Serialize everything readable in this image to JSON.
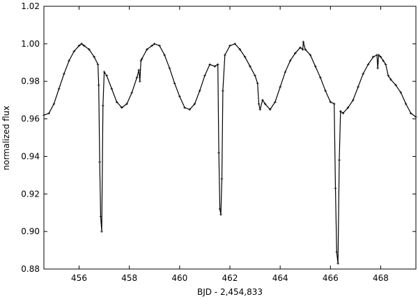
{
  "chart_data": {
    "type": "line",
    "title": "",
    "xlabel": "BJD - 2,454,833",
    "ylabel": "normalized flux",
    "xlim": [
      454.6,
      469.4
    ],
    "ylim": [
      0.88,
      1.02
    ],
    "x_ticks": [
      456,
      458,
      460,
      462,
      464,
      466,
      468
    ],
    "x_tick_labels": [
      "456",
      "458",
      "460",
      "462",
      "464",
      "466",
      "468"
    ],
    "y_ticks": [
      0.88,
      0.9,
      0.92,
      0.94,
      0.96,
      0.98,
      1.0,
      1.02
    ],
    "y_tick_labels": [
      "0.88",
      "0.90",
      "0.92",
      "0.94",
      "0.96",
      "0.98",
      "1.00",
      "1.02"
    ],
    "grid": false,
    "legend": "none",
    "series": [
      {
        "color": "#000000",
        "marker": "plus",
        "x": [
          454.6,
          454.8,
          455.0,
          455.2,
          455.4,
          455.6,
          455.8,
          456.0,
          456.1,
          456.2,
          456.4,
          456.6,
          456.75,
          456.78,
          456.82,
          456.86,
          456.9,
          456.95,
          457.0,
          457.1,
          457.3,
          457.5,
          457.7,
          457.9,
          458.1,
          458.3,
          458.38,
          458.42,
          458.46,
          458.5,
          458.7,
          458.9,
          459.0,
          459.2,
          459.4,
          459.6,
          459.8,
          460.0,
          460.2,
          460.4,
          460.6,
          460.8,
          461.0,
          461.2,
          461.4,
          461.52,
          461.56,
          461.6,
          461.64,
          461.68,
          461.72,
          461.8,
          462.0,
          462.2,
          462.4,
          462.6,
          462.8,
          463.0,
          463.1,
          463.15,
          463.2,
          463.3,
          463.4,
          463.6,
          463.8,
          464.0,
          464.2,
          464.4,
          464.6,
          464.8,
          464.9,
          464.92,
          465.0,
          465.2,
          465.4,
          465.6,
          465.8,
          466.0,
          466.15,
          466.2,
          466.25,
          466.3,
          466.35,
          466.4,
          466.5,
          466.7,
          466.9,
          467.1,
          467.3,
          467.5,
          467.7,
          467.85,
          467.88,
          467.92,
          468.0,
          468.1,
          468.2,
          468.3,
          468.4,
          468.6,
          468.8,
          469.0,
          469.2,
          469.4
        ],
        "y": [
          0.962,
          0.963,
          0.968,
          0.976,
          0.984,
          0.991,
          0.996,
          0.999,
          1.0,
          0.999,
          0.997,
          0.993,
          0.989,
          0.978,
          0.937,
          0.908,
          0.9,
          0.967,
          0.985,
          0.983,
          0.976,
          0.969,
          0.966,
          0.968,
          0.974,
          0.982,
          0.986,
          0.98,
          0.991,
          0.992,
          0.997,
          0.999,
          1.0,
          0.999,
          0.994,
          0.987,
          0.979,
          0.972,
          0.966,
          0.965,
          0.968,
          0.975,
          0.983,
          0.989,
          0.988,
          0.989,
          0.942,
          0.912,
          0.909,
          0.928,
          0.975,
          0.994,
          0.999,
          1.0,
          0.997,
          0.993,
          0.988,
          0.983,
          0.979,
          0.968,
          0.965,
          0.97,
          0.968,
          0.965,
          0.969,
          0.977,
          0.985,
          0.991,
          0.995,
          0.998,
          0.997,
          1.001,
          0.997,
          0.994,
          0.988,
          0.982,
          0.975,
          0.969,
          0.968,
          0.923,
          0.889,
          0.883,
          0.938,
          0.964,
          0.963,
          0.966,
          0.97,
          0.977,
          0.984,
          0.989,
          0.993,
          0.994,
          0.987,
          0.994,
          0.993,
          0.991,
          0.989,
          0.983,
          0.981,
          0.978,
          0.974,
          0.968,
          0.963,
          0.961
        ]
      }
    ]
  }
}
